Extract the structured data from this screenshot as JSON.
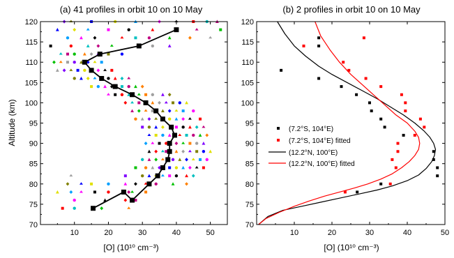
{
  "chart_data": [
    {
      "type": "scatter",
      "title": "(a) 41 profiles in orbit 10 on 10 May",
      "xlabel": "[O] (10¹⁰ cm⁻³)",
      "ylabel": "Altitude (km)",
      "xlim": [
        0,
        55
      ],
      "ylim": [
        70,
        120
      ],
      "xticks": [
        "10",
        "20",
        "30",
        "40",
        "50"
      ],
      "yticks": [
        "70",
        "75",
        "80",
        "85",
        "90",
        "95",
        "100",
        "105",
        "110",
        "115",
        "120"
      ],
      "mean_profile": {
        "color": "#000000",
        "x": [
          15.5,
          24.5,
          27,
          32,
          34.5,
          36,
          37.5,
          38,
          38,
          39.5,
          38.5,
          36,
          34,
          31,
          27,
          22,
          18,
          15,
          13,
          17.5,
          29,
          40
        ],
        "y": [
          74,
          78,
          76,
          80,
          82,
          84,
          86,
          88,
          90,
          92,
          94,
          96,
          98,
          100,
          102,
          104,
          106,
          108,
          110,
          112,
          114,
          118
        ]
      },
      "profile_marker_colors": [
        "#ff0000",
        "#0000ff",
        "#00c000",
        "#ff00ff",
        "#8000ff",
        "#00c0c0",
        "#e0e000",
        "#ff8000",
        "#000000",
        "#808000",
        "#c00080",
        "#00a0ff",
        "#a0a0a0"
      ],
      "profile_rows": [
        {
          "y": 74,
          "x": [
            6.5,
            10,
            15.5,
            18,
            26
          ]
        },
        {
          "y": 76,
          "x": [
            10,
            19,
            25,
            27,
            28
          ]
        },
        {
          "y": 78,
          "x": [
            5,
            9,
            12,
            16,
            20,
            24.5,
            26,
            27,
            31
          ]
        },
        {
          "y": 80,
          "x": [
            8,
            12,
            15,
            20,
            25,
            28,
            31,
            32,
            34,
            39,
            43
          ]
        },
        {
          "y": 82,
          "x": [
            9,
            25,
            30,
            32,
            34,
            36,
            38,
            40,
            43,
            45
          ]
        },
        {
          "y": 84,
          "x": [
            28,
            31,
            33,
            35,
            36,
            38,
            40,
            42,
            44,
            46,
            48
          ]
        },
        {
          "y": 86,
          "x": [
            30,
            32,
            34,
            36,
            37.5,
            39,
            41,
            43,
            45,
            47,
            49
          ]
        },
        {
          "y": 88,
          "x": [
            32,
            34,
            36,
            37,
            38,
            40,
            42,
            44,
            46,
            48,
            50
          ]
        },
        {
          "y": 90,
          "x": [
            31,
            33,
            35,
            37,
            38,
            40,
            42,
            44,
            46,
            48
          ]
        },
        {
          "y": 92,
          "x": [
            32,
            34,
            36,
            38,
            39.5,
            41,
            43,
            45,
            47,
            49
          ]
        },
        {
          "y": 94,
          "x": [
            30,
            32,
            34,
            36,
            38.5,
            40,
            42,
            44,
            46,
            48
          ]
        },
        {
          "y": 96,
          "x": [
            28,
            30,
            32,
            34,
            36,
            38,
            40,
            42,
            44,
            47
          ]
        },
        {
          "y": 98,
          "x": [
            27,
            29,
            31,
            33,
            34,
            36,
            38,
            40,
            42,
            45
          ]
        },
        {
          "y": 100,
          "x": [
            25,
            27,
            29,
            31,
            33,
            35,
            37,
            39,
            41,
            43
          ]
        },
        {
          "y": 102,
          "x": [
            20,
            22,
            24,
            26,
            27,
            29,
            31,
            33,
            36,
            38
          ]
        },
        {
          "y": 104,
          "x": [
            15,
            17,
            19,
            21,
            22,
            24,
            26,
            28,
            30
          ]
        },
        {
          "y": 106,
          "x": [
            10,
            12,
            14,
            16,
            18,
            20,
            22,
            24,
            26
          ]
        },
        {
          "y": 108,
          "x": [
            5,
            7,
            9,
            11,
            13,
            15,
            17,
            19,
            21
          ]
        },
        {
          "y": 110,
          "x": [
            4,
            6,
            8,
            10,
            12,
            14,
            16,
            18
          ]
        },
        {
          "y": 112,
          "x": [
            6,
            8,
            10,
            13,
            15,
            17,
            20,
            24
          ]
        },
        {
          "y": 114,
          "x": [
            3,
            9,
            14,
            17,
            21,
            29,
            33,
            38
          ]
        },
        {
          "y": 116,
          "x": [
            8,
            12,
            16,
            24,
            28,
            32,
            38,
            44,
            50
          ]
        },
        {
          "y": 118,
          "x": [
            5,
            10,
            14,
            20,
            26,
            33,
            40,
            46,
            53
          ]
        },
        {
          "y": 120,
          "x": [
            7,
            9,
            15,
            22,
            28,
            35,
            40,
            45,
            49,
            52
          ]
        }
      ]
    },
    {
      "type": "scatter",
      "title": "(b) 2 profiles in orbit 10 on 10 May",
      "xlabel": "[O] (10¹⁰ cm⁻³)",
      "ylabel": "",
      "xlim": [
        0,
        50
      ],
      "ylim": [
        70,
        120
      ],
      "xticks": [
        "10",
        "20",
        "30",
        "40",
        "50"
      ],
      "yticks": [
        "70",
        "75",
        "80",
        "85",
        "90",
        "95",
        "100",
        "105",
        "110",
        "115",
        "120"
      ],
      "legend_position": "middle-left",
      "series": [
        {
          "name": "(7.2°S, 104°E)",
          "kind": "points",
          "color": "#000000",
          "x": [
            26.7,
            33,
            48,
            48,
            47,
            47,
            39,
            34,
            33,
            30.5,
            30,
            26.5,
            22.5,
            16.5,
            6.5,
            16.5,
            16.5
          ],
          "y": [
            78,
            80,
            82,
            84,
            86,
            88,
            92,
            94,
            96,
            98,
            100,
            102,
            104,
            106,
            108,
            114,
            116
          ]
        },
        {
          "name": "(7.2°S, 104°E) fitted",
          "kind": "points",
          "color": "#ff0000",
          "x": [
            23.5,
            35.5,
            37,
            36,
            37.5,
            37.5,
            42,
            44.5,
            43.5,
            39.5,
            39.5,
            38.5,
            33,
            29,
            24.5,
            23,
            12.5,
            28.5
          ],
          "y": [
            78,
            80,
            84,
            86,
            88,
            90,
            92,
            94,
            96,
            98,
            100,
            102,
            104,
            106,
            108,
            110,
            114,
            116
          ]
        },
        {
          "name": "(12.2°N, 100°E)",
          "kind": "line",
          "color": "#000000",
          "x": [
            0.5,
            3,
            7,
            12,
            17,
            22,
            27,
            32,
            36,
            40,
            43,
            45,
            46.5,
            47.2,
            47.5,
            47,
            46,
            44.5,
            42,
            39,
            35.5,
            32,
            28,
            24,
            20,
            16.5,
            13,
            10,
            7.5,
            5.5
          ],
          "y": [
            70,
            72,
            73.5,
            74.5,
            75.5,
            76.5,
            77.5,
            78.5,
            79.5,
            80.8,
            82.2,
            83.8,
            85.5,
            87,
            88.5,
            90,
            91.5,
            93,
            95,
            97,
            99,
            101,
            103,
            105,
            107,
            109,
            111.5,
            114,
            117,
            120
          ]
        },
        {
          "name": "(12.2°N, 100°E) fitted",
          "kind": "line",
          "color": "#ff0000",
          "x": [
            0.5,
            2.5,
            6,
            10,
            14,
            18,
            22,
            26,
            29.5,
            33,
            36,
            38.5,
            40.5,
            42,
            43,
            43.3,
            43,
            42,
            40,
            37,
            34,
            31,
            28,
            25,
            22,
            19.5,
            17,
            15.5
          ],
          "y": [
            70,
            71.5,
            73,
            74.5,
            75.8,
            77,
            78,
            79,
            80,
            81.2,
            82.5,
            84,
            85.5,
            87,
            88.5,
            90,
            91.5,
            93,
            95,
            97,
            99.5,
            102,
            104.5,
            107,
            110,
            113,
            116.5,
            120
          ]
        }
      ]
    }
  ]
}
